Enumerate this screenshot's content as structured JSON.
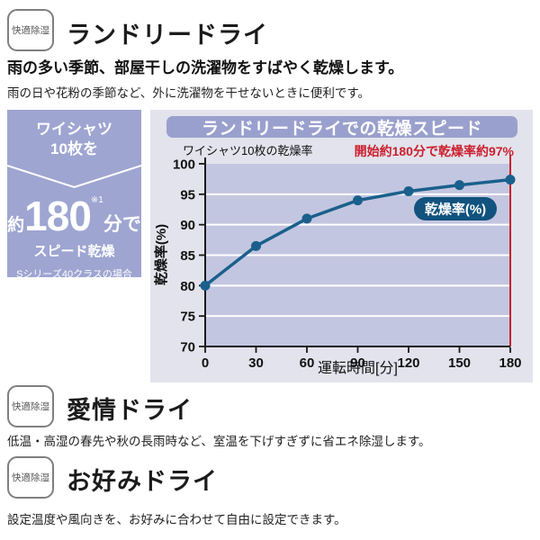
{
  "sections": [
    {
      "badge": "快適除湿",
      "title": "ランドリードライ",
      "lead": "雨の多い季節、部屋干しの洗濯物をすばやく乾燥します。",
      "note": "雨の日や花粉の季節など、外に洗濯物を干せないときに便利です。"
    },
    {
      "badge": "快適除湿",
      "title": "愛情ドライ",
      "note": "低温・高湿の春先や秋の長雨時など、室温を下げすぎずに省エネ除湿します。"
    },
    {
      "badge": "快適除湿",
      "title": "お好みドライ",
      "note": "設定温度や風向きを、お好みに合わせて自由に設定できます。"
    }
  ],
  "promo": {
    "line1": "ワイシャツ",
    "line2": "10枚を",
    "approx": "約",
    "big_number": "180",
    "footnote_mark": "※1",
    "unit": "分で",
    "sub": "スピード乾燥",
    "caption": "Sシリーズ40クラスの場合",
    "bg_color": "#9ea5d1"
  },
  "chart_data": {
    "type": "line",
    "title": "ランドリードライでの乾燥スピード",
    "subtitle": "ワイシャツ10枚の乾燥率",
    "annotation": "開始約180分で乾燥率約97%",
    "annotation_x": 180,
    "x": [
      0,
      30,
      60,
      90,
      120,
      150,
      180
    ],
    "series": [
      {
        "name": "乾燥率(%)",
        "values": [
          80,
          86.5,
          91,
          94,
          95.5,
          96.5,
          97.4
        ]
      }
    ],
    "xlabel": "運転時間[分]",
    "ylabel": "乾燥率(%)",
    "xlim": [
      0,
      180
    ],
    "ylim": [
      70,
      100
    ],
    "xticks": [
      0,
      30,
      60,
      90,
      120,
      150,
      180
    ],
    "yticks": [
      70,
      75,
      80,
      85,
      90,
      95,
      100
    ],
    "grid": "horizontal-white",
    "legend_position": "inside-right",
    "colors": {
      "line": "#1a608c",
      "marker": "#1a608c",
      "plot_bg": "#c3c6e0",
      "chart_bg": "#e2e3ec",
      "title_bar_bg": "#9aa0cd",
      "annotation_red": "#cc1f2d",
      "legend_bg": "#11527e",
      "axis": "#1a1a1a",
      "grid_line": "#ffffff"
    }
  }
}
